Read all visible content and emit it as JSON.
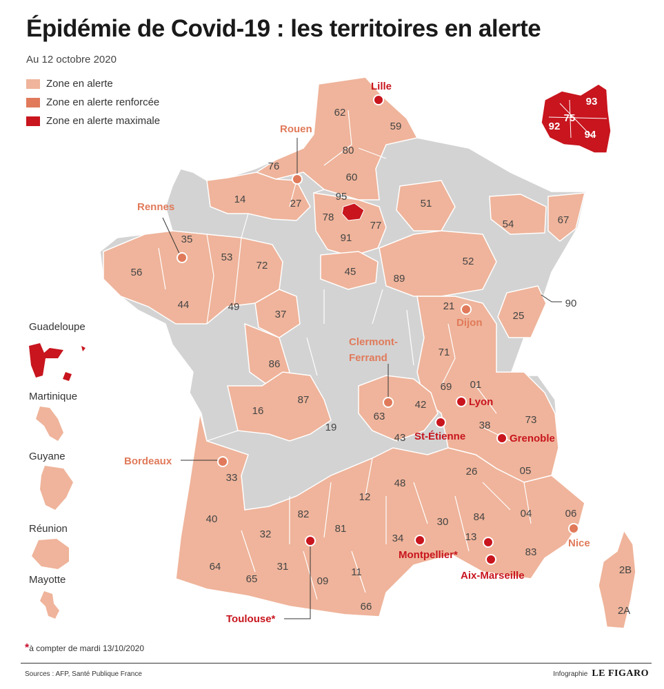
{
  "title": "Épidémie de Covid-19 : les territoires en alerte",
  "date": "Au 12 octobre 2020",
  "colors": {
    "alerte": "#efb49b",
    "renforcee": "#e07a5a",
    "maximale": "#c8151e",
    "none": "#d3d3d3",
    "border": "#ffffff"
  },
  "legend": [
    {
      "label": "Zone en alerte",
      "color": "#efb49b"
    },
    {
      "label": "Zone en alerte renforcée",
      "color": "#e07a5a"
    },
    {
      "label": "Zone en alerte maximale",
      "color": "#c8151e"
    }
  ],
  "departments": [
    {
      "code": "62",
      "level": "alerte"
    },
    {
      "code": "59",
      "level": "alerte"
    },
    {
      "code": "80",
      "level": "alerte"
    },
    {
      "code": "76",
      "level": "alerte"
    },
    {
      "code": "60",
      "level": "alerte"
    },
    {
      "code": "14",
      "level": "alerte"
    },
    {
      "code": "27",
      "level": "alerte"
    },
    {
      "code": "95",
      "level": "alerte"
    },
    {
      "code": "78",
      "level": "alerte"
    },
    {
      "code": "77",
      "level": "alerte"
    },
    {
      "code": "91",
      "level": "alerte"
    },
    {
      "code": "51",
      "level": "alerte"
    },
    {
      "code": "54",
      "level": "alerte"
    },
    {
      "code": "67",
      "level": "alerte"
    },
    {
      "code": "35",
      "level": "alerte"
    },
    {
      "code": "56",
      "level": "alerte"
    },
    {
      "code": "53",
      "level": "alerte"
    },
    {
      "code": "72",
      "level": "alerte"
    },
    {
      "code": "45",
      "level": "alerte"
    },
    {
      "code": "89",
      "level": "alerte"
    },
    {
      "code": "52",
      "level": "alerte"
    },
    {
      "code": "44",
      "level": "alerte"
    },
    {
      "code": "49",
      "level": "alerte"
    },
    {
      "code": "37",
      "level": "alerte"
    },
    {
      "code": "21",
      "level": "alerte"
    },
    {
      "code": "25",
      "level": "alerte"
    },
    {
      "code": "90",
      "level": "alerte"
    },
    {
      "code": "86",
      "level": "alerte"
    },
    {
      "code": "71",
      "level": "alerte"
    },
    {
      "code": "69",
      "level": "alerte"
    },
    {
      "code": "01",
      "level": "alerte"
    },
    {
      "code": "16",
      "level": "alerte"
    },
    {
      "code": "87",
      "level": "alerte"
    },
    {
      "code": "42",
      "level": "alerte"
    },
    {
      "code": "63",
      "level": "alerte"
    },
    {
      "code": "73",
      "level": "alerte"
    },
    {
      "code": "38",
      "level": "alerte"
    },
    {
      "code": "19",
      "level": "alerte"
    },
    {
      "code": "43",
      "level": "alerte"
    },
    {
      "code": "33",
      "level": "alerte"
    },
    {
      "code": "26",
      "level": "alerte"
    },
    {
      "code": "05",
      "level": "alerte"
    },
    {
      "code": "48",
      "level": "alerte"
    },
    {
      "code": "40",
      "level": "alerte"
    },
    {
      "code": "12",
      "level": "alerte"
    },
    {
      "code": "04",
      "level": "alerte"
    },
    {
      "code": "06",
      "level": "alerte"
    },
    {
      "code": "82",
      "level": "alerte"
    },
    {
      "code": "30",
      "level": "alerte"
    },
    {
      "code": "84",
      "level": "alerte"
    },
    {
      "code": "32",
      "level": "alerte"
    },
    {
      "code": "81",
      "level": "alerte"
    },
    {
      "code": "34",
      "level": "alerte"
    },
    {
      "code": "13",
      "level": "alerte"
    },
    {
      "code": "83",
      "level": "alerte"
    },
    {
      "code": "64",
      "level": "alerte"
    },
    {
      "code": "65",
      "level": "alerte"
    },
    {
      "code": "31",
      "level": "alerte"
    },
    {
      "code": "09",
      "level": "alerte"
    },
    {
      "code": "11",
      "level": "alerte"
    },
    {
      "code": "66",
      "level": "alerte"
    },
    {
      "code": "2B",
      "level": "alerte"
    },
    {
      "code": "2A",
      "level": "alerte"
    }
  ],
  "paris_inset": [
    {
      "code": "93",
      "level": "maximale"
    },
    {
      "code": "75",
      "level": "maximale"
    },
    {
      "code": "92",
      "level": "maximale"
    },
    {
      "code": "94",
      "level": "maximale"
    }
  ],
  "cities": [
    {
      "name": "Lille",
      "level": "maximale"
    },
    {
      "name": "Rouen",
      "level": "renforcee"
    },
    {
      "name": "Rennes",
      "level": "renforcee"
    },
    {
      "name": "Dijon",
      "level": "renforcee"
    },
    {
      "name": "Clermont-Ferrand",
      "lines": [
        "Clermont-",
        "Ferrand"
      ],
      "level": "renforcee"
    },
    {
      "name": "Lyon",
      "level": "maximale"
    },
    {
      "name": "St-Étienne",
      "level": "maximale"
    },
    {
      "name": "Grenoble",
      "level": "maximale"
    },
    {
      "name": "Bordeaux",
      "level": "renforcee"
    },
    {
      "name": "Nice",
      "level": "renforcee"
    },
    {
      "name": "Toulouse*",
      "level": "maximale"
    },
    {
      "name": "Montpellier*",
      "level": "maximale"
    },
    {
      "name": "Aix-Marseille",
      "level": "maximale"
    }
  ],
  "overseas": [
    {
      "name": "Guadeloupe",
      "level": "maximale"
    },
    {
      "name": "Martinique",
      "level": "alerte"
    },
    {
      "name": "Guyane",
      "level": "alerte"
    },
    {
      "name": "Réunion",
      "level": "alerte"
    },
    {
      "name": "Mayotte",
      "level": "alerte"
    }
  ],
  "footnote": {
    "mark": "*",
    "text": "à compter de mardi 13/10/2020"
  },
  "sources": "Sources : AFP, Santé Publique France",
  "credit": {
    "label": "Infographie",
    "brand": "LE FIGARO"
  }
}
